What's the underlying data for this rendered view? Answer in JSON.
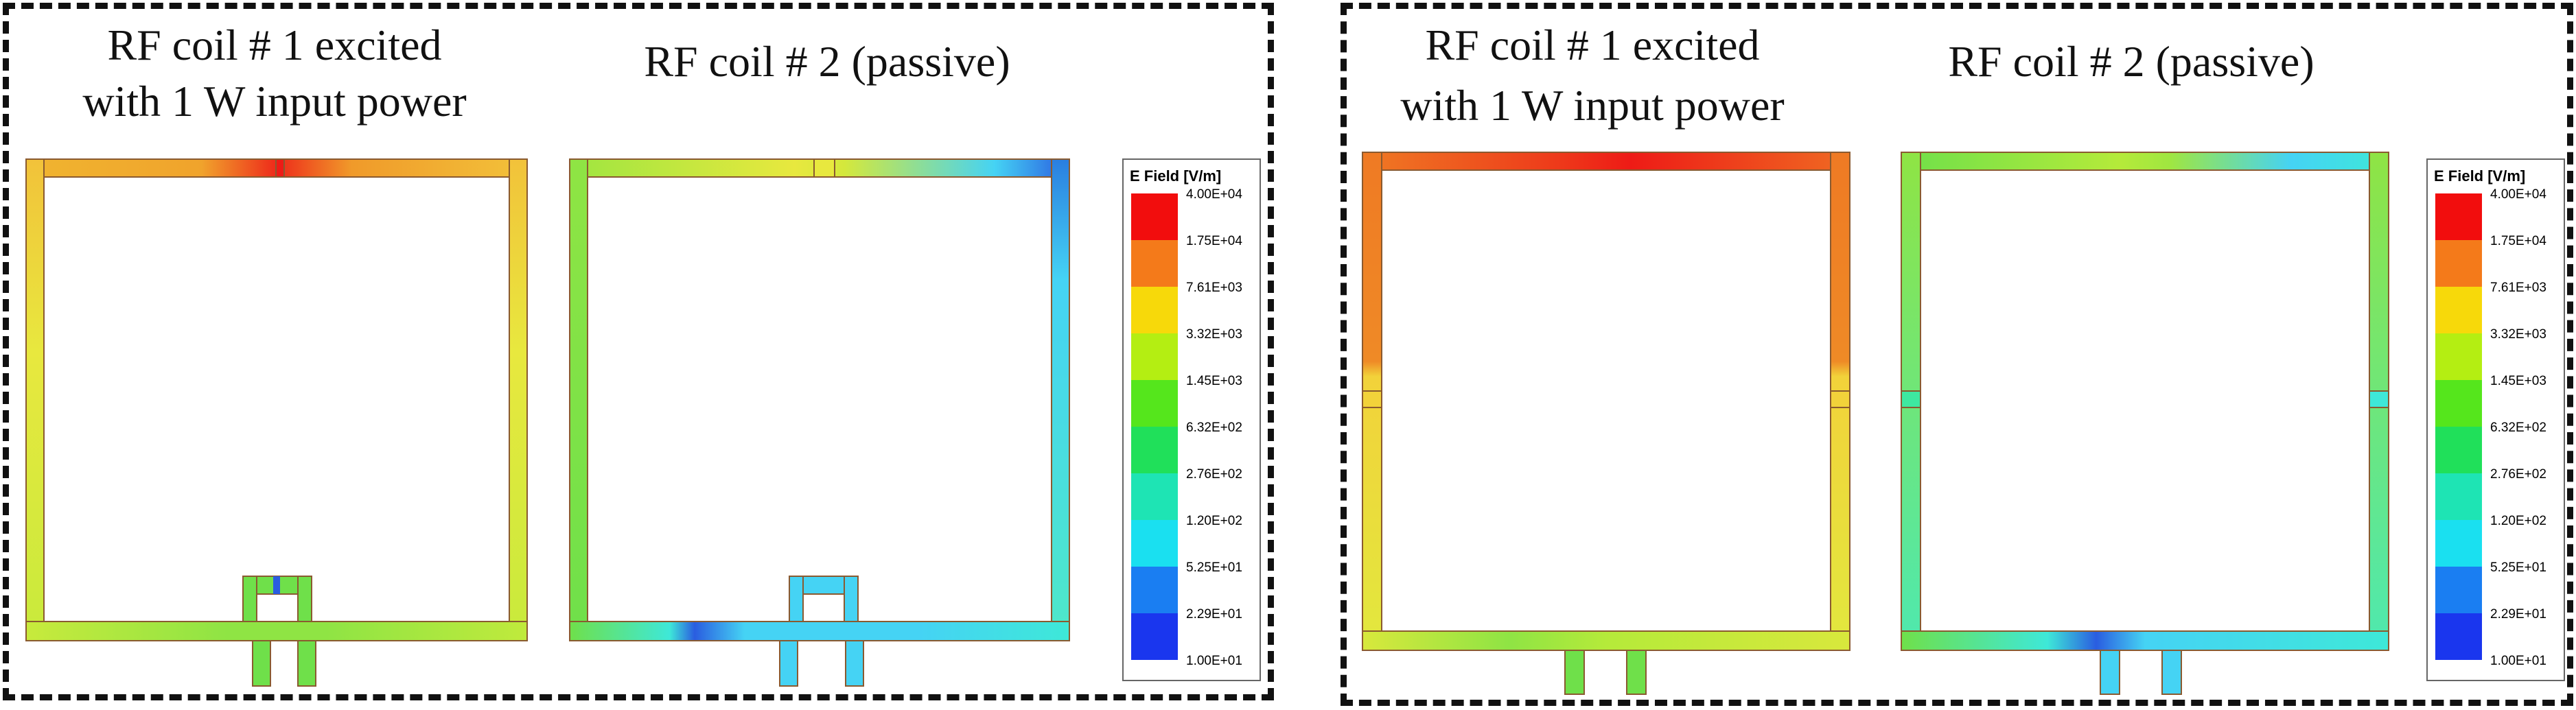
{
  "left_panel": {
    "caption_coil1_line1": "RF coil # 1 excited",
    "caption_coil1_line2": "with 1 W input power",
    "caption_coil2": "RF coil # 2 (passive)"
  },
  "right_panel": {
    "caption_coil1_line1": "RF coil # 1 excited",
    "caption_coil1_line2": "with 1 W input power",
    "caption_coil2": "RF coil # 2 (passive)"
  },
  "legend": {
    "title": "E Field [V/m]",
    "ticks": [
      "4.00E+04",
      "1.75E+04",
      "7.61E+03",
      "3.32E+03",
      "1.45E+03",
      "6.32E+02",
      "2.76E+02",
      "1.20E+02",
      "5.25E+01",
      "2.29E+01",
      "1.00E+01"
    ],
    "colors": [
      "#f20d0d",
      "#f47a1a",
      "#f7d90a",
      "#b4ee12",
      "#55e61c",
      "#20e05a",
      "#1ee4b4",
      "#1ae0f0",
      "#1a7ef2",
      "#1a36ee"
    ]
  },
  "colors": {
    "red": "#ee1b16",
    "orange": "#ef7a24",
    "yellow": "#e9e63c",
    "lime": "#b5ea3a",
    "green": "#6fe04a",
    "cyan": "#3ee8d8",
    "lightblue": "#45d3f4",
    "blue": "#2a5de0",
    "outline": "#7a5a3a"
  }
}
